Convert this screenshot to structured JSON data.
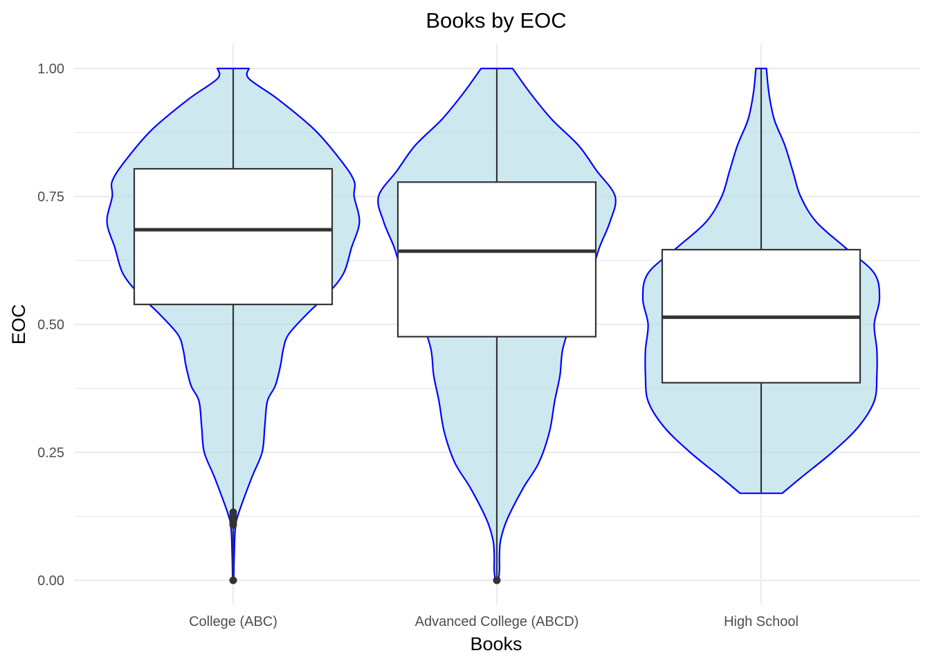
{
  "chart_data": {
    "type": "violin",
    "title": "Books by EOC",
    "xlabel": "Books",
    "ylabel": "EOC",
    "ylim": [
      -0.045,
      1.045
    ],
    "yticks": [
      0.0,
      0.25,
      0.5,
      0.75,
      1.0
    ],
    "ytick_labels": [
      "0.00",
      "0.25",
      "0.50",
      "0.75",
      "1.00"
    ],
    "categories": [
      "College (ABC)",
      "Advanced College (ABCD)",
      "High School"
    ],
    "grid": true,
    "colors": {
      "violin_fill": "#add8e6",
      "violin_stroke": "#0000ff",
      "box_stroke": "#333333",
      "grid": "#ebebeb"
    },
    "violins": [
      {
        "category": "College (ABC)",
        "min": 0.0,
        "max": 1.0,
        "half_width": [
          [
            0.0,
            0.002
          ],
          [
            0.05,
            0.004
          ],
          [
            0.1,
            0.008
          ],
          [
            0.13,
            0.02
          ],
          [
            0.2,
            0.07
          ],
          [
            0.25,
            0.11
          ],
          [
            0.3,
            0.12
          ],
          [
            0.35,
            0.13
          ],
          [
            0.38,
            0.16
          ],
          [
            0.42,
            0.18
          ],
          [
            0.45,
            0.19
          ],
          [
            0.48,
            0.21
          ],
          [
            0.52,
            0.28
          ],
          [
            0.56,
            0.36
          ],
          [
            0.6,
            0.42
          ],
          [
            0.65,
            0.45
          ],
          [
            0.7,
            0.48
          ],
          [
            0.75,
            0.46
          ],
          [
            0.78,
            0.46
          ],
          [
            0.82,
            0.41
          ],
          [
            0.88,
            0.31
          ],
          [
            0.94,
            0.17
          ],
          [
            0.98,
            0.06
          ],
          [
            1.0,
            0.06
          ]
        ],
        "box": {
          "lower_whisker": 0.0,
          "q1": 0.539,
          "median": 0.685,
          "q3": 0.804,
          "upper_whisker": 1.0
        },
        "outliers": [
          0.0,
          0.108,
          0.113,
          0.118,
          0.123,
          0.128,
          0.133
        ]
      },
      {
        "category": "Advanced College (ABCD)",
        "min": 0.0,
        "max": 1.0,
        "half_width": [
          [
            0.0,
            0.006
          ],
          [
            0.02,
            0.01
          ],
          [
            0.05,
            0.01
          ],
          [
            0.08,
            0.015
          ],
          [
            0.12,
            0.04
          ],
          [
            0.18,
            0.1
          ],
          [
            0.23,
            0.16
          ],
          [
            0.29,
            0.2
          ],
          [
            0.35,
            0.22
          ],
          [
            0.4,
            0.24
          ],
          [
            0.45,
            0.25
          ],
          [
            0.5,
            0.28
          ],
          [
            0.55,
            0.32
          ],
          [
            0.6,
            0.36
          ],
          [
            0.65,
            0.39
          ],
          [
            0.7,
            0.43
          ],
          [
            0.75,
            0.45
          ],
          [
            0.8,
            0.38
          ],
          [
            0.85,
            0.31
          ],
          [
            0.9,
            0.21
          ],
          [
            0.95,
            0.13
          ],
          [
            1.0,
            0.06
          ]
        ],
        "box": {
          "lower_whisker": 0.0,
          "q1": 0.476,
          "median": 0.643,
          "q3": 0.778,
          "upper_whisker": 1.0
        },
        "outliers": [
          0.0
        ]
      },
      {
        "category": "High School",
        "min": 0.17,
        "max": 1.0,
        "half_width": [
          [
            0.17,
            0.08
          ],
          [
            0.2,
            0.15
          ],
          [
            0.25,
            0.27
          ],
          [
            0.3,
            0.37
          ],
          [
            0.35,
            0.43
          ],
          [
            0.4,
            0.44
          ],
          [
            0.45,
            0.44
          ],
          [
            0.5,
            0.43
          ],
          [
            0.55,
            0.45
          ],
          [
            0.6,
            0.43
          ],
          [
            0.65,
            0.32
          ],
          [
            0.7,
            0.21
          ],
          [
            0.75,
            0.15
          ],
          [
            0.8,
            0.12
          ],
          [
            0.85,
            0.09
          ],
          [
            0.9,
            0.05
          ],
          [
            0.95,
            0.03
          ],
          [
            1.0,
            0.02
          ]
        ],
        "box": {
          "lower_whisker": 0.17,
          "q1": 0.386,
          "median": 0.514,
          "q3": 0.646,
          "upper_whisker": 1.0
        },
        "outliers": []
      }
    ]
  }
}
